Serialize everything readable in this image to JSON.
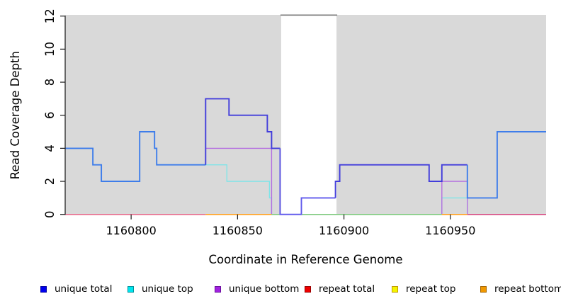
{
  "chart_data": {
    "type": "line",
    "subtype": "step-coverage",
    "title": "",
    "xlabel": "Coordinate in Reference Genome",
    "ylabel": "Read Coverage Depth",
    "xlim": [
      1160769,
      1160995
    ],
    "ylim": [
      0,
      12
    ],
    "grid": "off",
    "x_ticks": [
      {
        "value": 1160800,
        "label": "1160800"
      },
      {
        "value": 1160850,
        "label": "1160850"
      },
      {
        "value": 1160900,
        "label": "1160900"
      },
      {
        "value": 1160950,
        "label": "1160950"
      }
    ],
    "y_ticks": [
      {
        "value": 0,
        "label": "0"
      },
      {
        "value": 2,
        "label": "2"
      },
      {
        "value": 4,
        "label": "4"
      },
      {
        "value": 6,
        "label": "6"
      },
      {
        "value": 8,
        "label": "8"
      },
      {
        "value": 10,
        "label": "10"
      },
      {
        "value": 12,
        "label": "12"
      }
    ],
    "background_bands": [
      {
        "name": "gray-band-left",
        "from": 1160769,
        "to": 1160870.5,
        "color": "#D9D9D9"
      },
      {
        "name": "gray-band-right",
        "from": 1160896.5,
        "to": 1160995,
        "color": "#D9D9D9"
      }
    ],
    "gap_top_border": {
      "from": 1160870.5,
      "to": 1160896.5,
      "color": "#7A7A7A"
    },
    "series": [
      {
        "name": "unique-top-line",
        "legend": "unique top",
        "color": "#7FE4E8",
        "width": 1.4,
        "entry": null,
        "points": [
          [
            1160835,
            3
          ],
          [
            1160845,
            2
          ],
          [
            1160865,
            1
          ],
          [
            1160866,
            0
          ],
          [
            1160946,
            1
          ],
          [
            1160958,
            0
          ]
        ],
        "end": 1160958
      },
      {
        "name": "unique-bottom-line",
        "legend": "unique bottom",
        "color": "#B471E0",
        "width": 1.4,
        "entry": null,
        "points": [
          [
            1160835,
            4
          ],
          [
            1160866,
            0
          ],
          [
            1160946,
            2
          ],
          [
            1160958,
            0
          ]
        ],
        "end": 1160958
      },
      {
        "name": "baseline-segment-pink",
        "legend": "repeat total",
        "color": "#E4688A",
        "width": 1.5,
        "entry": null,
        "points": [
          [
            1160769,
            0
          ]
        ],
        "end": 1160835
      },
      {
        "name": "baseline-segment-orange-1",
        "legend": "repeat bottom",
        "color": "#FF9E1B",
        "width": 1.5,
        "entry": null,
        "points": [
          [
            1160835,
            0
          ]
        ],
        "end": 1160866
      },
      {
        "name": "baseline-segment-green",
        "legend": "",
        "color": "#7CC87C",
        "width": 1.5,
        "entry": null,
        "points": [
          [
            1160866,
            0
          ]
        ],
        "end": 1160946
      },
      {
        "name": "baseline-segment-orange-2",
        "legend": "repeat bottom",
        "color": "#FF9E1B",
        "width": 1.5,
        "entry": null,
        "points": [
          [
            1160946,
            0
          ]
        ],
        "end": 1160958
      },
      {
        "name": "baseline-segment-crimson",
        "legend": "repeat total",
        "color": "#D4477F",
        "width": 1.5,
        "entry": null,
        "points": [
          [
            1160958,
            0
          ]
        ],
        "end": 1160995
      },
      {
        "name": "unique-total-line-a",
        "legend": "unique total",
        "color": "#3E7DEA",
        "width": 1.9,
        "entry": null,
        "points": [
          [
            1160769,
            4
          ],
          [
            1160782,
            3
          ],
          [
            1160786,
            2
          ],
          [
            1160804,
            5
          ],
          [
            1160811,
            4
          ],
          [
            1160812,
            3
          ]
        ],
        "end": 1160835
      },
      {
        "name": "unique-total-line-b",
        "legend": "unique total",
        "color": "#423DDB",
        "width": 1.9,
        "entry": 3,
        "points": [
          [
            1160835,
            7
          ],
          [
            1160846,
            6
          ],
          [
            1160864,
            5
          ],
          [
            1160866,
            4
          ]
        ],
        "end": 1160870
      },
      {
        "name": "unique-total-line-c",
        "legend": "unique total",
        "color": "#5F58EC",
        "width": 1.9,
        "entry": 4,
        "points": [
          [
            1160870,
            0
          ],
          [
            1160880,
            1
          ]
        ],
        "end": 1160896
      },
      {
        "name": "unique-total-line-d",
        "legend": "unique total",
        "color": "#423DDB",
        "width": 1.9,
        "entry": 1,
        "points": [
          [
            1160896,
            2
          ],
          [
            1160898,
            3
          ],
          [
            1160940,
            2
          ],
          [
            1160946,
            3
          ]
        ],
        "end": 1160958
      },
      {
        "name": "unique-total-line-e",
        "legend": "unique total",
        "color": "#3E7DEA",
        "width": 1.9,
        "entry": 3,
        "points": [
          [
            1160958,
            1
          ],
          [
            1160972,
            5
          ]
        ],
        "end": 1160995
      }
    ],
    "legend_position": "bottom"
  },
  "legend": {
    "items": [
      {
        "key": "unique-total",
        "label": "unique total",
        "color": "#0000EE",
        "border": "#0000A0"
      },
      {
        "key": "unique-top",
        "label": "unique top",
        "color": "#00E6EE",
        "border": "#00919B"
      },
      {
        "key": "unique-bottom",
        "label": "unique bottom",
        "color": "#A122E0",
        "border": "#6B0F9C"
      },
      {
        "key": "repeat-total",
        "label": "repeat total",
        "color": "#EE0000",
        "border": "#990000"
      },
      {
        "key": "repeat-top",
        "label": "repeat top",
        "color": "#F4F400",
        "border": "#C09A00"
      },
      {
        "key": "repeat-bottom",
        "label": "repeat bottom",
        "color": "#F09800",
        "border": "#A56500"
      }
    ]
  },
  "axis_titles": {
    "x": "Coordinate in Reference Genome",
    "y": "Read Coverage Depth"
  }
}
